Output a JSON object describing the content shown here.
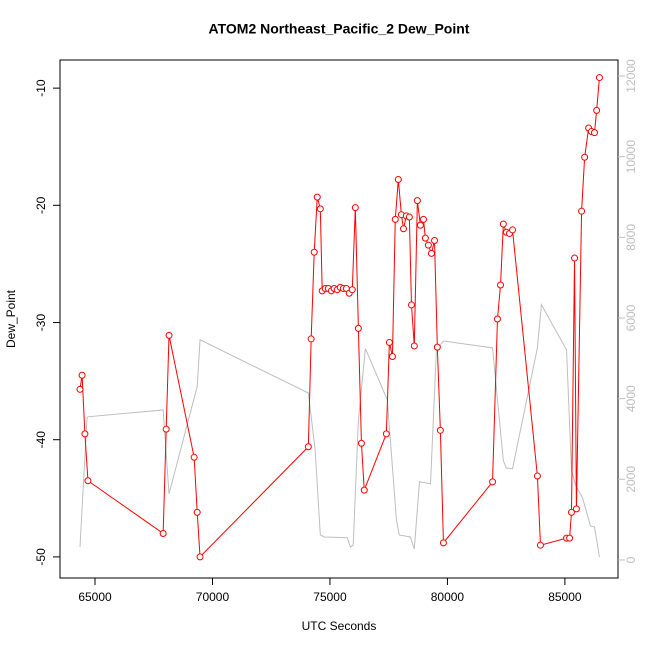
{
  "chart_data": {
    "type": "line",
    "title": "ATOM2 Northeast_Pacific_2 Dew_Point",
    "xlabel": "UTC Seconds",
    "ylabel": "Dew_Point",
    "xlim": [
      63510,
      87260
    ],
    "ylim": [
      -51.8,
      -7.6
    ],
    "y2lim": [
      -447,
      12397
    ],
    "xticks": [
      65000,
      70000,
      75000,
      80000,
      85000
    ],
    "yticks": [
      -10,
      -20,
      -30,
      -40,
      -50
    ],
    "y2ticks": [
      0,
      2000,
      4000,
      6000,
      8000,
      10000,
      12000
    ],
    "series": [
      {
        "color": "#bebebe",
        "axis": "y2",
        "markers": false,
        "x": [
          64360,
          64660,
          64700,
          67900,
          68150,
          69350,
          69470,
          74080,
          74370,
          74590,
          74760,
          75740,
          75870,
          75990,
          76210,
          76510,
          77440,
          77700,
          77830,
          77950,
          78420,
          78590,
          78810,
          79280,
          79530,
          79830,
          81920,
          82380,
          82510,
          82770,
          83830,
          84000,
          85070,
          85280,
          85450,
          85750,
          86090,
          86260,
          86470
        ],
        "values": [
          320,
          3520,
          3550,
          3720,
          1640,
          4300,
          5460,
          4140,
          2730,
          620,
          570,
          550,
          320,
          370,
          3470,
          5240,
          3970,
          1990,
          990,
          620,
          570,
          270,
          1940,
          1890,
          5210,
          5430,
          5260,
          2460,
          2280,
          2260,
          5260,
          6330,
          5210,
          2230,
          1860,
          1540,
          840,
          820,
          70
        ]
      },
      {
        "color": "#ff0000",
        "markers": true,
        "x": [
          64360,
          64450,
          64570,
          64700,
          67900,
          68030,
          68150,
          69220,
          69350,
          69470,
          74080,
          74200,
          74330,
          74460,
          74590,
          74670,
          74800,
          74930,
          75060,
          75180,
          75310,
          75440,
          75570,
          75700,
          75820,
          75950,
          76080,
          76210,
          76340,
          76460,
          77400,
          77530,
          77660,
          77780,
          77910,
          78040,
          78130,
          78250,
          78380,
          78470,
          78590,
          78720,
          78850,
          78980,
          79060,
          79190,
          79320,
          79450,
          79570,
          79700,
          79830,
          81920,
          82130,
          82260,
          82380,
          82510,
          82640,
          82770,
          83830,
          83960,
          85070,
          85200,
          85280,
          85410,
          85490,
          85710,
          85840,
          86010,
          86130,
          86260,
          86350,
          86470
        ],
        "values": [
          -35.7,
          -34.5,
          -39.5,
          -43.5,
          -48.0,
          -39.1,
          -31.1,
          -41.5,
          -46.2,
          -50.0,
          -40.6,
          -31.4,
          -24.0,
          -19.3,
          -20.3,
          -27.3,
          -27.1,
          -27.1,
          -27.3,
          -27.1,
          -27.2,
          -27.0,
          -27.1,
          -27.1,
          -27.5,
          -27.2,
          -20.2,
          -30.5,
          -40.3,
          -44.3,
          -39.5,
          -31.7,
          -32.9,
          -21.2,
          -17.8,
          -20.8,
          -22.0,
          -20.9,
          -21.0,
          -28.5,
          -32.0,
          -19.6,
          -21.7,
          -21.2,
          -22.8,
          -23.4,
          -24.1,
          -23.0,
          -32.1,
          -39.2,
          -48.8,
          -43.6,
          -29.7,
          -26.8,
          -21.6,
          -22.3,
          -22.4,
          -22.1,
          -43.1,
          -49.0,
          -48.4,
          -48.4,
          -46.2,
          -24.5,
          -45.9,
          -20.5,
          -15.9,
          -13.4,
          -13.7,
          -13.8,
          -11.9,
          -9.1
        ]
      }
    ]
  }
}
